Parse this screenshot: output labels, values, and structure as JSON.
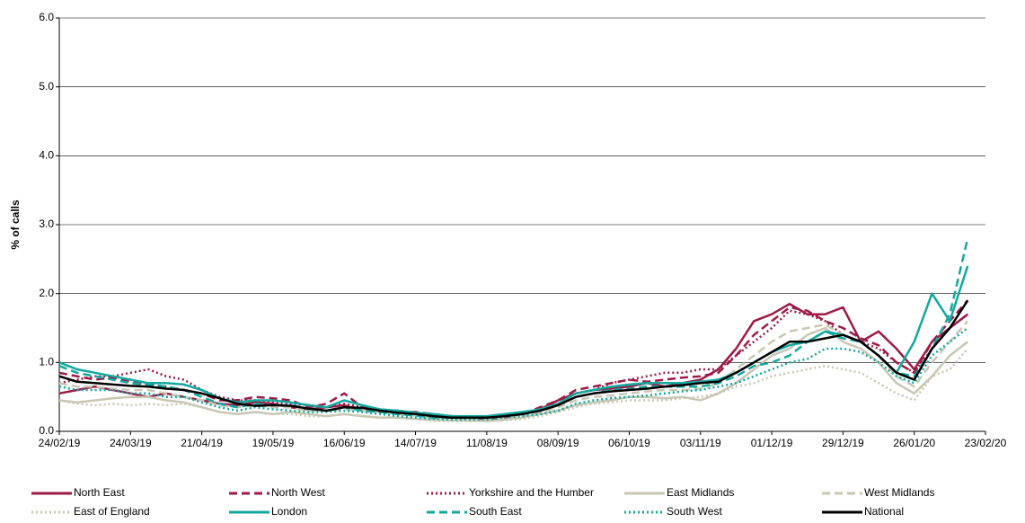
{
  "chart_data": {
    "type": "line",
    "y_label": "% of calls",
    "x": [
      "24/02/19",
      "03/03/19",
      "10/03/19",
      "17/03/19",
      "24/03/19",
      "31/03/19",
      "07/04/19",
      "14/04/19",
      "21/04/19",
      "28/04/19",
      "05/05/19",
      "12/05/19",
      "19/05/19",
      "26/05/19",
      "02/06/19",
      "09/06/19",
      "16/06/19",
      "23/06/19",
      "30/06/19",
      "07/07/19",
      "14/07/19",
      "21/07/19",
      "28/07/19",
      "04/08/19",
      "11/08/19",
      "18/08/19",
      "25/08/19",
      "01/09/19",
      "08/09/19",
      "15/09/19",
      "22/09/19",
      "29/09/19",
      "06/10/19",
      "13/10/19",
      "20/10/19",
      "27/10/19",
      "03/11/19",
      "10/11/19",
      "17/11/19",
      "24/11/19",
      "01/12/19",
      "08/12/19",
      "15/12/19",
      "22/12/19",
      "29/12/19",
      "05/01/20",
      "12/01/20",
      "19/01/20",
      "26/01/20",
      "02/02/20",
      "09/02/20",
      "16/02/20"
    ],
    "xlim": [
      "24/02/19",
      "23/02/20"
    ],
    "xticks": [
      "24/02/19",
      "24/03/19",
      "21/04/19",
      "19/05/19",
      "16/06/19",
      "14/07/19",
      "11/08/19",
      "08/09/19",
      "06/10/19",
      "03/11/19",
      "01/12/19",
      "29/12/19",
      "26/01/20",
      "23/02/20"
    ],
    "ylim": [
      0,
      6
    ],
    "yticks": [
      {
        "value": 0,
        "label": "0.0"
      },
      {
        "value": 1,
        "label": "1.0"
      },
      {
        "value": 2,
        "label": "2.0"
      },
      {
        "value": 3,
        "label": "3.0"
      },
      {
        "value": 4,
        "label": "4.0"
      },
      {
        "value": 5,
        "label": "5.0"
      },
      {
        "value": 6,
        "label": "6.0"
      }
    ],
    "grid": true,
    "legend": "bottom",
    "series": [
      {
        "name": "North East",
        "color": "#9b1b47",
        "dash": "solid",
        "values": [
          0.55,
          0.6,
          0.65,
          0.6,
          0.55,
          0.5,
          0.55,
          0.5,
          0.45,
          0.4,
          0.38,
          0.42,
          0.4,
          0.35,
          0.32,
          0.35,
          0.38,
          0.3,
          0.28,
          0.3,
          0.25,
          0.22,
          0.2,
          0.2,
          0.18,
          0.2,
          0.25,
          0.32,
          0.45,
          0.55,
          0.6,
          0.62,
          0.65,
          0.7,
          0.65,
          0.7,
          0.75,
          0.9,
          1.2,
          1.6,
          1.7,
          1.85,
          1.7,
          1.7,
          1.8,
          1.3,
          1.45,
          1.2,
          0.9,
          1.3,
          1.5,
          1.7
        ]
      },
      {
        "name": "North West",
        "color": "#9b1b47",
        "dash": "dashed",
        "values": [
          0.85,
          0.8,
          0.75,
          0.78,
          0.72,
          0.68,
          0.65,
          0.6,
          0.55,
          0.45,
          0.45,
          0.5,
          0.48,
          0.45,
          0.35,
          0.4,
          0.55,
          0.35,
          0.3,
          0.28,
          0.28,
          0.25,
          0.22,
          0.2,
          0.2,
          0.22,
          0.25,
          0.35,
          0.45,
          0.6,
          0.65,
          0.7,
          0.75,
          0.72,
          0.75,
          0.78,
          0.8,
          0.85,
          1.1,
          1.4,
          1.6,
          1.8,
          1.75,
          1.6,
          1.5,
          1.35,
          1.25,
          1.0,
          0.85,
          1.3,
          1.6,
          1.9
        ]
      },
      {
        "name": "Yorkshire and the Humber",
        "color": "#9b1b47",
        "dash": "dotted",
        "values": [
          0.7,
          0.75,
          0.8,
          0.8,
          0.85,
          0.9,
          0.8,
          0.75,
          0.6,
          0.5,
          0.45,
          0.45,
          0.42,
          0.4,
          0.38,
          0.35,
          0.4,
          0.35,
          0.3,
          0.3,
          0.27,
          0.25,
          0.22,
          0.2,
          0.2,
          0.22,
          0.25,
          0.32,
          0.45,
          0.55,
          0.6,
          0.7,
          0.75,
          0.8,
          0.85,
          0.85,
          0.9,
          0.9,
          1.1,
          1.3,
          1.5,
          1.75,
          1.7,
          1.6,
          1.4,
          1.3,
          1.2,
          1.0,
          0.85,
          1.2,
          1.5,
          1.7
        ]
      },
      {
        "name": "East Midlands",
        "color": "#c9c7b3",
        "dash": "solid",
        "values": [
          0.45,
          0.42,
          0.45,
          0.48,
          0.5,
          0.5,
          0.45,
          0.42,
          0.35,
          0.28,
          0.25,
          0.28,
          0.25,
          0.28,
          0.25,
          0.22,
          0.25,
          0.22,
          0.2,
          0.2,
          0.18,
          0.17,
          0.16,
          0.16,
          0.15,
          0.17,
          0.2,
          0.25,
          0.3,
          0.38,
          0.42,
          0.45,
          0.5,
          0.5,
          0.48,
          0.5,
          0.45,
          0.55,
          0.7,
          0.9,
          1.1,
          1.2,
          1.4,
          1.5,
          1.3,
          1.2,
          1.0,
          0.7,
          0.55,
          0.8,
          1.1,
          1.3
        ]
      },
      {
        "name": "West Midlands",
        "color": "#c9c7b3",
        "dash": "dashed",
        "values": [
          0.7,
          0.65,
          0.65,
          0.62,
          0.6,
          0.6,
          0.55,
          0.5,
          0.45,
          0.38,
          0.35,
          0.38,
          0.35,
          0.35,
          0.3,
          0.3,
          0.32,
          0.3,
          0.28,
          0.25,
          0.23,
          0.2,
          0.2,
          0.18,
          0.18,
          0.2,
          0.23,
          0.28,
          0.35,
          0.45,
          0.5,
          0.52,
          0.55,
          0.58,
          0.6,
          0.6,
          0.62,
          0.7,
          0.9,
          1.1,
          1.3,
          1.45,
          1.5,
          1.55,
          1.4,
          1.3,
          1.1,
          0.8,
          0.65,
          1.0,
          1.3,
          1.6
        ]
      },
      {
        "name": "East of England",
        "color": "#c9c7b3",
        "dash": "dotted",
        "values": [
          0.45,
          0.4,
          0.38,
          0.4,
          0.38,
          0.4,
          0.38,
          0.4,
          0.35,
          0.28,
          0.25,
          0.28,
          0.25,
          0.25,
          0.22,
          0.22,
          0.25,
          0.22,
          0.2,
          0.2,
          0.18,
          0.15,
          0.15,
          0.15,
          0.15,
          0.16,
          0.18,
          0.22,
          0.28,
          0.35,
          0.4,
          0.42,
          0.45,
          0.45,
          0.45,
          0.48,
          0.5,
          0.55,
          0.65,
          0.7,
          0.8,
          0.85,
          0.9,
          0.95,
          0.9,
          0.85,
          0.7,
          0.55,
          0.45,
          0.8,
          0.9,
          1.2
        ]
      },
      {
        "name": "London",
        "color": "#13a89e",
        "dash": "solid",
        "values": [
          1.0,
          0.9,
          0.85,
          0.8,
          0.75,
          0.7,
          0.7,
          0.68,
          0.6,
          0.48,
          0.42,
          0.45,
          0.45,
          0.42,
          0.38,
          0.35,
          0.45,
          0.38,
          0.32,
          0.3,
          0.27,
          0.25,
          0.22,
          0.22,
          0.22,
          0.25,
          0.28,
          0.32,
          0.4,
          0.55,
          0.6,
          0.65,
          0.68,
          0.7,
          0.7,
          0.7,
          0.72,
          0.75,
          0.85,
          1.0,
          1.15,
          1.25,
          1.3,
          1.45,
          1.4,
          1.3,
          1.1,
          0.85,
          1.3,
          2.0,
          1.6,
          2.4
        ]
      },
      {
        "name": "South East",
        "color": "#13a89e",
        "dash": "dashed",
        "values": [
          0.95,
          0.85,
          0.8,
          0.75,
          0.7,
          0.68,
          0.65,
          0.6,
          0.5,
          0.4,
          0.35,
          0.4,
          0.38,
          0.38,
          0.33,
          0.3,
          0.35,
          0.3,
          0.28,
          0.25,
          0.23,
          0.2,
          0.2,
          0.2,
          0.2,
          0.22,
          0.25,
          0.3,
          0.38,
          0.5,
          0.55,
          0.6,
          0.62,
          0.65,
          0.65,
          0.65,
          0.65,
          0.7,
          0.8,
          0.95,
          1.0,
          1.1,
          1.3,
          1.45,
          1.35,
          1.3,
          1.1,
          0.85,
          0.8,
          1.2,
          1.7,
          2.8
        ]
      },
      {
        "name": "South West",
        "color": "#13a89e",
        "dash": "dotted",
        "values": [
          0.65,
          0.6,
          0.6,
          0.6,
          0.55,
          0.55,
          0.5,
          0.5,
          0.42,
          0.35,
          0.3,
          0.35,
          0.32,
          0.3,
          0.28,
          0.28,
          0.3,
          0.28,
          0.25,
          0.22,
          0.2,
          0.18,
          0.17,
          0.17,
          0.17,
          0.2,
          0.22,
          0.25,
          0.3,
          0.4,
          0.45,
          0.48,
          0.5,
          0.52,
          0.55,
          0.58,
          0.6,
          0.65,
          0.7,
          0.8,
          0.9,
          1.0,
          1.05,
          1.2,
          1.2,
          1.15,
          1.0,
          0.8,
          0.7,
          1.1,
          1.3,
          1.5
        ]
      },
      {
        "name": "National",
        "color": "#000000",
        "dash": "solid",
        "values": [
          0.8,
          0.72,
          0.7,
          0.68,
          0.66,
          0.65,
          0.62,
          0.6,
          0.55,
          0.48,
          0.4,
          0.37,
          0.38,
          0.37,
          0.33,
          0.3,
          0.35,
          0.34,
          0.3,
          0.27,
          0.25,
          0.22,
          0.2,
          0.2,
          0.2,
          0.22,
          0.25,
          0.3,
          0.38,
          0.5,
          0.55,
          0.58,
          0.6,
          0.62,
          0.65,
          0.67,
          0.7,
          0.72,
          0.85,
          1.0,
          1.15,
          1.3,
          1.3,
          1.35,
          1.4,
          1.3,
          1.1,
          0.85,
          0.75,
          1.2,
          1.5,
          1.9
        ]
      }
    ]
  }
}
